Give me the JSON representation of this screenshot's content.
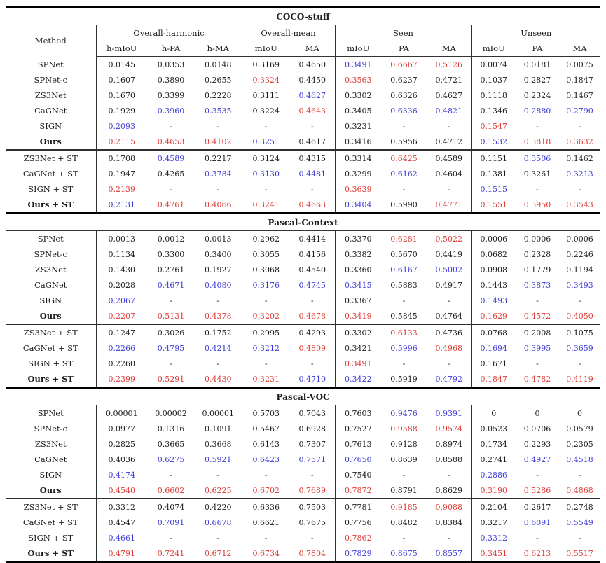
{
  "colors": {
    "red": "#e03a34",
    "blue": "#3d3bd8",
    "text": "#1c1c1c",
    "rule": "#000000"
  },
  "table": {
    "header": {
      "method_label": "Method",
      "groups": [
        {
          "label": "Overall-harmonic",
          "cols": [
            "h-mIoU",
            "h-PA",
            "h-MA"
          ]
        },
        {
          "label": "Overall-mean",
          "cols": [
            "mIoU",
            "MA"
          ]
        },
        {
          "label": "Seen",
          "cols": [
            "mIoU",
            "PA",
            "MA"
          ]
        },
        {
          "label": "Unseen",
          "cols": [
            "mIoU",
            "PA",
            "MA"
          ]
        }
      ]
    },
    "value_color_codes": {
      "r": "red",
      "b": "blue",
      "default": "black"
    },
    "sections": [
      {
        "title": "COCO-stuff",
        "groups": [
          {
            "rows": [
              {
                "method": "SPNet",
                "bold": false,
                "values": [
                  "0.0145",
                  "0.0353",
                  "0.0148",
                  "0.3169",
                  "0.4650",
                  "b:0.3491",
                  "r:0.6667",
                  "r:0.5126",
                  "0.0074",
                  "0.0181",
                  "0.0075"
                ]
              },
              {
                "method": "SPNet-c",
                "bold": false,
                "values": [
                  "0.1607",
                  "0.3890",
                  "0.2655",
                  "r:0.3324",
                  "0.4450",
                  "r:0.3563",
                  "0.6237",
                  "0.4721",
                  "0.1037",
                  "0.2827",
                  "0.1847"
                ]
              },
              {
                "method": "ZS3Net",
                "bold": false,
                "values": [
                  "0.1670",
                  "0.3399",
                  "0.2228",
                  "0.3111",
                  "b:0.4627",
                  "0.3302",
                  "0.6326",
                  "0.4627",
                  "0.1118",
                  "0.2324",
                  "0.1467"
                ]
              },
              {
                "method": "CaGNet",
                "bold": false,
                "values": [
                  "0.1929",
                  "b:0.3960",
                  "b:0.3535",
                  "0.3224",
                  "r:0.4643",
                  "0.3405",
                  "b:0.6336",
                  "b:0.4821",
                  "0.1346",
                  "b:0.2880",
                  "b:0.2790"
                ]
              },
              {
                "method": "SIGN",
                "bold": false,
                "values": [
                  "b:0.2093",
                  "-",
                  "-",
                  "-",
                  "-",
                  "0.3231",
                  "-",
                  "-",
                  "r:0.1547",
                  "-",
                  "-"
                ]
              },
              {
                "method": "Ours",
                "bold": true,
                "values": [
                  "r:0.2115",
                  "r:0.4653",
                  "r:0.4102",
                  "b:0.3251",
                  "0.4617",
                  "0.3416",
                  "0.5956",
                  "0.4712",
                  "b:0.1532",
                  "r:0.3818",
                  "r:0.3632"
                ]
              }
            ]
          },
          {
            "rows": [
              {
                "method": "ZS3Net + ST",
                "bold": false,
                "values": [
                  "0.1708",
                  "b:0.4589",
                  "0.2217",
                  "0.3124",
                  "0.4315",
                  "0.3314",
                  "r:0.6425",
                  "0.4589",
                  "0.1151",
                  "b:0.3506",
                  "0.1462"
                ]
              },
              {
                "method": "CaGNet + ST",
                "bold": false,
                "values": [
                  "0.1947",
                  "0.4265",
                  "b:0.3784",
                  "b:0.3130",
                  "b:0.4481",
                  "0.3299",
                  "b:0.6162",
                  "0.4604",
                  "0.1381",
                  "0.3261",
                  "b:0.3213"
                ]
              },
              {
                "method": "SIGN + ST",
                "bold": false,
                "values": [
                  "r:0.2139",
                  "-",
                  "-",
                  "-",
                  "-",
                  "r:0.3639",
                  "-",
                  "-",
                  "b:0.1515",
                  "-",
                  "-"
                ]
              },
              {
                "method": "Ours + ST",
                "bold": true,
                "values": [
                  "b:0.2131",
                  "r:0.4761",
                  "r:0.4066",
                  "r:0.3241",
                  "r:0.4663",
                  "b:0.3404",
                  "0.5990",
                  "r:0.4771",
                  "r:0.1551",
                  "r:0.3950",
                  "r:0.3543"
                ]
              }
            ]
          }
        ]
      },
      {
        "title": "Pascal-Context",
        "groups": [
          {
            "rows": [
              {
                "method": "SPNet",
                "bold": false,
                "values": [
                  "0.0013",
                  "0.0012",
                  "0.0013",
                  "0.2962",
                  "0.4414",
                  "0.3370",
                  "r:0.6281",
                  "r:0.5022",
                  "0.0006",
                  "0.0006",
                  "0.0006"
                ]
              },
              {
                "method": "SPNet-c",
                "bold": false,
                "values": [
                  "0.1134",
                  "0.3300",
                  "0.3400",
                  "0.3055",
                  "0.4156",
                  "0.3382",
                  "0.5670",
                  "0.4419",
                  "0.0682",
                  "0.2328",
                  "0.2246"
                ]
              },
              {
                "method": "ZS3Net",
                "bold": false,
                "values": [
                  "0.1430",
                  "0.2761",
                  "0.1927",
                  "0.3068",
                  "0.4540",
                  "0.3360",
                  "b:0.6167",
                  "b:0.5002",
                  "0.0908",
                  "0.1779",
                  "0.1194"
                ]
              },
              {
                "method": "CaGNet",
                "bold": false,
                "values": [
                  "0.2028",
                  "b:0.4671",
                  "b:0.4080",
                  "b:0.3176",
                  "b:0.4745",
                  "b:0.3415",
                  "0.5883",
                  "0.4917",
                  "0.1443",
                  "b:0.3873",
                  "b:0.3493"
                ]
              },
              {
                "method": "SIGN",
                "bold": false,
                "values": [
                  "b:0.2067",
                  "-",
                  "-",
                  "-",
                  "-",
                  "0.3367",
                  "-",
                  "-",
                  "b:0.1493",
                  "-",
                  "-"
                ]
              },
              {
                "method": "Ours",
                "bold": true,
                "values": [
                  "r:0.2207",
                  "r:0.5131",
                  "r:0.4378",
                  "r:0.3202",
                  "r:0.4678",
                  "r:0.3419",
                  "0.5845",
                  "0.4764",
                  "r:0.1629",
                  "r:0.4572",
                  "r:0.4050"
                ]
              }
            ]
          },
          {
            "rows": [
              {
                "method": "ZS3Net + ST",
                "bold": false,
                "values": [
                  "0.1247",
                  "0.3026",
                  "0.1752",
                  "0.2995",
                  "0.4293",
                  "0.3302",
                  "r:0.6133",
                  "0.4736",
                  "0.0768",
                  "0.2008",
                  "0.1075"
                ]
              },
              {
                "method": "CaGNet + ST",
                "bold": false,
                "values": [
                  "b:0.2266",
                  "b:0.4795",
                  "b:0.4214",
                  "b:0.3212",
                  "r:0.4809",
                  "0.3421",
                  "b:0.5996",
                  "r:0.4968",
                  "b:0.1694",
                  "b:0.3995",
                  "b:0.3659"
                ]
              },
              {
                "method": "SIGN + ST",
                "bold": false,
                "values": [
                  "0.2260",
                  "-",
                  "-",
                  "-",
                  "-",
                  "r:0.3491",
                  "-",
                  "-",
                  "0.1671",
                  "-",
                  "-"
                ]
              },
              {
                "method": "Ours + ST",
                "bold": true,
                "values": [
                  "r:0.2399",
                  "r:0.5291",
                  "r:0.4430",
                  "r:0.3231",
                  "b:0.4710",
                  "b:0.3422",
                  "0.5919",
                  "b:0.4792",
                  "r:0.1847",
                  "r:0.4782",
                  "r:0.4119"
                ]
              }
            ]
          }
        ]
      },
      {
        "title": "Pascal-VOC",
        "groups": [
          {
            "rows": [
              {
                "method": "SPNet",
                "bold": false,
                "values": [
                  "0.00001",
                  "0.00002",
                  "0.00001",
                  "0.5703",
                  "0.7043",
                  "0.7603",
                  "b:0.9476",
                  "b:0.9391",
                  "0",
                  "0",
                  "0"
                ]
              },
              {
                "method": "SPNet-c",
                "bold": false,
                "values": [
                  "0.0977",
                  "0.1316",
                  "0.1091",
                  "0.5467",
                  "0.6928",
                  "0.7527",
                  "r:0.9588",
                  "r:0.9574",
                  "0.0523",
                  "0.0706",
                  "0.0579"
                ]
              },
              {
                "method": "ZS3Net",
                "bold": false,
                "values": [
                  "0.2825",
                  "0.3665",
                  "0.3668",
                  "0.6143",
                  "0.7307",
                  "0.7613",
                  "0.9128",
                  "0.8974",
                  "0.1734",
                  "0.2293",
                  "0.2305"
                ]
              },
              {
                "method": "CaGNet",
                "bold": false,
                "values": [
                  "0.4036",
                  "b:0.6275",
                  "b:0.5921",
                  "b:0.6423",
                  "b:0.7571",
                  "b:0.7650",
                  "0.8639",
                  "0.8588",
                  "0.2741",
                  "b:0.4927",
                  "b:0.4518"
                ]
              },
              {
                "method": "SIGN",
                "bold": false,
                "values": [
                  "b:0.4174",
                  "-",
                  "-",
                  "-",
                  "-",
                  "0.7540",
                  "-",
                  "-",
                  "b:0.2886",
                  "-",
                  "-"
                ]
              },
              {
                "method": "Ours",
                "bold": true,
                "values": [
                  "r:0.4540",
                  "r:0.6602",
                  "r:0.6225",
                  "r:0.6702",
                  "r:0.7689",
                  "r:0.7872",
                  "0.8791",
                  "0.8629",
                  "r:0.3190",
                  "r:0.5286",
                  "r:0.4868"
                ]
              }
            ]
          },
          {
            "rows": [
              {
                "method": "ZS3Net + ST",
                "bold": false,
                "values": [
                  "0.3312",
                  "0.4074",
                  "0.4220",
                  "0.6336",
                  "0.7503",
                  "0.7781",
                  "r:0.9185",
                  "r:0.9088",
                  "0.2104",
                  "0.2617",
                  "0.2748"
                ]
              },
              {
                "method": "CaGNet + ST",
                "bold": false,
                "values": [
                  "0.4547",
                  "b:0.7091",
                  "b:0.6678",
                  "0.6621",
                  "0.7675",
                  "0.7756",
                  "0.8482",
                  "0.8384",
                  "0.3217",
                  "b:0.6091",
                  "b:0.5549"
                ]
              },
              {
                "method": "SIGN + ST",
                "bold": false,
                "values": [
                  "b:0.4661",
                  "-",
                  "-",
                  "-",
                  "-",
                  "r:0.7862",
                  "-",
                  "-",
                  "b:0.3312",
                  "-",
                  "-"
                ]
              },
              {
                "method": "Ours + ST",
                "bold": true,
                "values": [
                  "r:0.4791",
                  "r:0.7241",
                  "r:0.6712",
                  "r:0.6734",
                  "r:0.7804",
                  "b:0.7829",
                  "b:0.8675",
                  "b:0.8557",
                  "r:0.3451",
                  "r:0.6213",
                  "r:0.5517"
                ]
              }
            ]
          }
        ]
      }
    ]
  }
}
